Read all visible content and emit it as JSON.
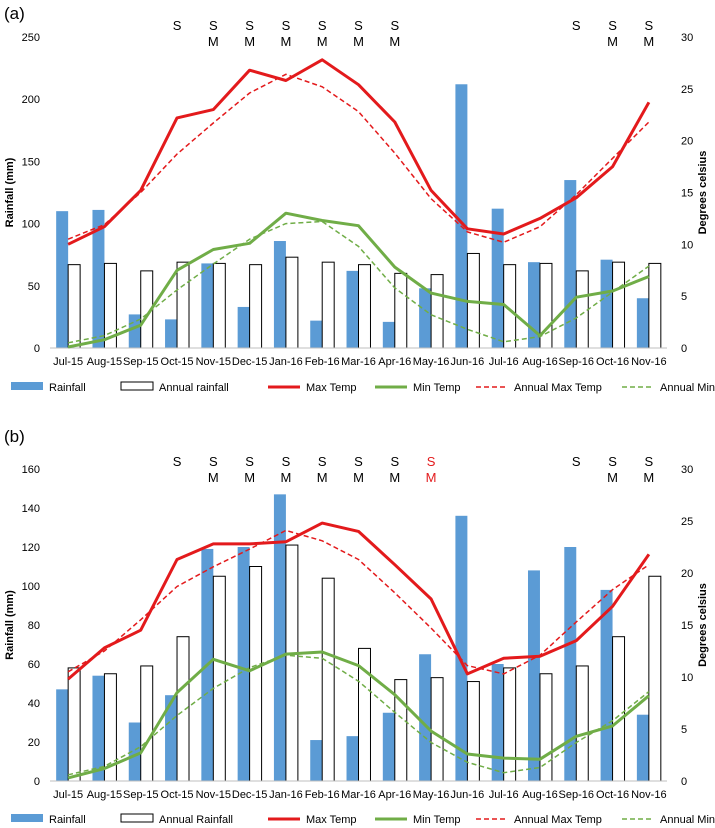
{
  "chart_data": [
    {
      "panel_label": "(a)",
      "type": "bar",
      "categories": [
        "Jul-15",
        "Aug-15",
        "Sep-15",
        "Oct-15",
        "Nov-15",
        "Dec-15",
        "Jan-16",
        "Feb-16",
        "Mar-16",
        "Apr-16",
        "May-16",
        "Jun-16",
        "Jul-16",
        "Aug-16",
        "Sep-16",
        "Oct-16",
        "Nov-16"
      ],
      "ylabel": "Rainfall (mm)",
      "y2label": "Degrees celsius",
      "ylim": [
        0,
        250
      ],
      "yticks": [
        "0",
        "50",
        "100",
        "150",
        "200",
        "250"
      ],
      "y2lim": [
        0,
        30
      ],
      "y2ticks": [
        "0",
        "5",
        "10",
        "15",
        "20",
        "25",
        "30"
      ],
      "series": [
        {
          "name": "Rainfall",
          "kind": "bar",
          "color": "#5b9bd5",
          "values": [
            110,
            111,
            27,
            23,
            68,
            33,
            86,
            22,
            62,
            21,
            48,
            212,
            112,
            69,
            135,
            71,
            40
          ]
        },
        {
          "name": "Annual rainfall",
          "kind": "bar-outline",
          "color": "#000000",
          "values": [
            67,
            68,
            62,
            69,
            68,
            67,
            73,
            69,
            67,
            60,
            59,
            76,
            67,
            68,
            62,
            69,
            68
          ]
        },
        {
          "name": "Max Temp",
          "kind": "line",
          "color": "#e31a1c",
          "dash": "solid",
          "values": [
            10,
            11.7,
            15.2,
            22.2,
            23,
            26.8,
            25.8,
            27.8,
            25.4,
            21.8,
            15.2,
            11.5,
            11,
            12.5,
            14.5,
            17.5,
            23.7
          ]
        },
        {
          "name": "Min Temp",
          "kind": "line",
          "color": "#70ad47",
          "dash": "solid",
          "values": [
            0.1,
            0.8,
            2.2,
            7.5,
            9.5,
            10.1,
            13,
            12.3,
            11.8,
            7.8,
            5.3,
            4.5,
            4.2,
            1.2,
            4.9,
            5.5,
            6.9
          ]
        },
        {
          "name": "Annual Max Temp",
          "kind": "line",
          "color": "#e31a1c",
          "dash": "dashed",
          "values": [
            10.5,
            11.9,
            15.0,
            18.7,
            21.7,
            24.6,
            26.4,
            25.2,
            22.8,
            18.8,
            14.4,
            11.2,
            10.2,
            11.7,
            14.8,
            18.3,
            21.8
          ]
        },
        {
          "name": "Annual Min Temp",
          "kind": "line",
          "color": "#70ad47",
          "dash": "dashed",
          "values": [
            0.5,
            1.2,
            2.8,
            5.6,
            8.1,
            10.5,
            12.0,
            12.2,
            9.8,
            5.8,
            3.2,
            1.8,
            0.6,
            1.1,
            2.9,
            5.4,
            7.9
          ]
        }
      ],
      "annotations": [
        {
          "category": "Oct-15",
          "lines": [
            {
              "text": "S",
              "color": "#000000"
            }
          ]
        },
        {
          "category": "Nov-15",
          "lines": [
            {
              "text": "S",
              "color": "#000000"
            },
            {
              "text": "M",
              "color": "#000000"
            }
          ]
        },
        {
          "category": "Dec-15",
          "lines": [
            {
              "text": "S",
              "color": "#000000"
            },
            {
              "text": "M",
              "color": "#000000"
            }
          ]
        },
        {
          "category": "Jan-16",
          "lines": [
            {
              "text": "S",
              "color": "#000000"
            },
            {
              "text": "M",
              "color": "#000000"
            }
          ]
        },
        {
          "category": "Feb-16",
          "lines": [
            {
              "text": "S",
              "color": "#000000"
            },
            {
              "text": "M",
              "color": "#000000"
            }
          ]
        },
        {
          "category": "Mar-16",
          "lines": [
            {
              "text": "S",
              "color": "#000000"
            },
            {
              "text": "M",
              "color": "#000000"
            }
          ]
        },
        {
          "category": "Apr-16",
          "lines": [
            {
              "text": "S",
              "color": "#000000"
            },
            {
              "text": "M",
              "color": "#000000"
            }
          ]
        },
        {
          "category": "Sep-16",
          "lines": [
            {
              "text": "S",
              "color": "#000000"
            }
          ]
        },
        {
          "category": "Oct-16",
          "lines": [
            {
              "text": "S",
              "color": "#000000"
            },
            {
              "text": "M",
              "color": "#000000"
            }
          ]
        },
        {
          "category": "Nov-16",
          "lines": [
            {
              "text": "S",
              "color": "#000000"
            },
            {
              "text": "M",
              "color": "#000000"
            }
          ]
        }
      ],
      "legend": [
        "Rainfall",
        "Annual rainfall",
        "Max Temp",
        "Min Temp",
        "Annual Max Temp",
        "Annual Min Temp"
      ],
      "legend_position": "bottom"
    },
    {
      "panel_label": "(b)",
      "type": "bar",
      "categories": [
        "Jul-15",
        "Aug-15",
        "Sep-15",
        "Oct-15",
        "Nov-15",
        "Dec-15",
        "Jan-16",
        "Feb-16",
        "Mar-16",
        "Apr-16",
        "May-16",
        "Jun-16",
        "Jul-16",
        "Aug-16",
        "Sep-16",
        "Oct-16",
        "Nov-16"
      ],
      "ylabel": "Rainfall (mm)",
      "y2label": "Degrees celsius",
      "ylim": [
        0,
        160
      ],
      "yticks": [
        "0",
        "20",
        "40",
        "60",
        "80",
        "100",
        "120",
        "140",
        "160"
      ],
      "y2lim": [
        0,
        30
      ],
      "y2ticks": [
        "0",
        "5",
        "10",
        "15",
        "20",
        "25",
        "30"
      ],
      "series": [
        {
          "name": "Rainfall",
          "kind": "bar",
          "color": "#5b9bd5",
          "values": [
            47,
            54,
            30,
            44,
            119,
            120,
            147,
            21,
            23,
            35,
            65,
            136,
            60,
            108,
            120,
            98,
            34
          ]
        },
        {
          "name": "Annual Rainfall",
          "kind": "bar-outline",
          "color": "#000000",
          "values": [
            58,
            55,
            59,
            74,
            105,
            110,
            121,
            104,
            68,
            52,
            53,
            51,
            58,
            55,
            59,
            74,
            105
          ]
        },
        {
          "name": "Max Temp",
          "kind": "line",
          "color": "#e31a1c",
          "dash": "solid",
          "values": [
            9.8,
            12.8,
            14.5,
            21.3,
            22.8,
            22.8,
            23,
            24.8,
            24,
            20.8,
            17.5,
            10.3,
            11.8,
            12,
            13.5,
            16.8,
            21.8
          ]
        },
        {
          "name": "Min Temp",
          "kind": "line",
          "color": "#70ad47",
          "dash": "solid",
          "values": [
            0.3,
            1.2,
            2.7,
            8.5,
            11.7,
            10.6,
            12.2,
            12.4,
            11.1,
            8.3,
            4.8,
            2.6,
            2.2,
            2.1,
            4.3,
            5.3,
            8.2
          ]
        },
        {
          "name": "Annual Max Temp",
          "kind": "line",
          "color": "#e31a1c",
          "dash": "dashed",
          "values": [
            10.5,
            12.5,
            15.5,
            18.7,
            20.6,
            22.3,
            24.1,
            23.1,
            21.3,
            18.1,
            14.7,
            11.1,
            10.3,
            12.1,
            15.3,
            18.4,
            20.8
          ]
        },
        {
          "name": "Annual Min Temp",
          "kind": "line",
          "color": "#70ad47",
          "dash": "dashed",
          "values": [
            0.6,
            1.4,
            3.3,
            6.3,
            8.9,
            10.9,
            12.1,
            11.8,
            9.6,
            6.6,
            3.7,
            1.8,
            0.8,
            1.3,
            3.7,
            5.8,
            8.6
          ]
        }
      ],
      "annotations": [
        {
          "category": "Oct-15",
          "lines": [
            {
              "text": "S",
              "color": "#000000"
            }
          ]
        },
        {
          "category": "Nov-15",
          "lines": [
            {
              "text": "S",
              "color": "#000000"
            },
            {
              "text": "M",
              "color": "#000000"
            }
          ]
        },
        {
          "category": "Dec-15",
          "lines": [
            {
              "text": "S",
              "color": "#000000"
            },
            {
              "text": "M",
              "color": "#000000"
            }
          ]
        },
        {
          "category": "Jan-16",
          "lines": [
            {
              "text": "S",
              "color": "#000000"
            },
            {
              "text": "M",
              "color": "#000000"
            }
          ]
        },
        {
          "category": "Feb-16",
          "lines": [
            {
              "text": "S",
              "color": "#000000"
            },
            {
              "text": "M",
              "color": "#000000"
            }
          ]
        },
        {
          "category": "Mar-16",
          "lines": [
            {
              "text": "S",
              "color": "#000000"
            },
            {
              "text": "M",
              "color": "#000000"
            }
          ]
        },
        {
          "category": "Apr-16",
          "lines": [
            {
              "text": "S",
              "color": "#000000"
            },
            {
              "text": "M",
              "color": "#000000"
            }
          ]
        },
        {
          "category": "May-16",
          "lines": [
            {
              "text": "S",
              "color": "#e31a1c"
            },
            {
              "text": "M",
              "color": "#e31a1c"
            }
          ]
        },
        {
          "category": "Sep-16",
          "lines": [
            {
              "text": "S",
              "color": "#000000"
            }
          ]
        },
        {
          "category": "Oct-16",
          "lines": [
            {
              "text": "S",
              "color": "#000000"
            },
            {
              "text": "M",
              "color": "#000000"
            }
          ]
        },
        {
          "category": "Nov-16",
          "lines": [
            {
              "text": "S",
              "color": "#000000"
            },
            {
              "text": "M",
              "color": "#000000"
            }
          ]
        }
      ],
      "legend": [
        "Rainfall",
        "Annual Rainfall",
        "Max Temp",
        "Min Temp",
        "Annual Max Temp",
        "Annual Min Temp"
      ],
      "legend_position": "bottom"
    }
  ]
}
